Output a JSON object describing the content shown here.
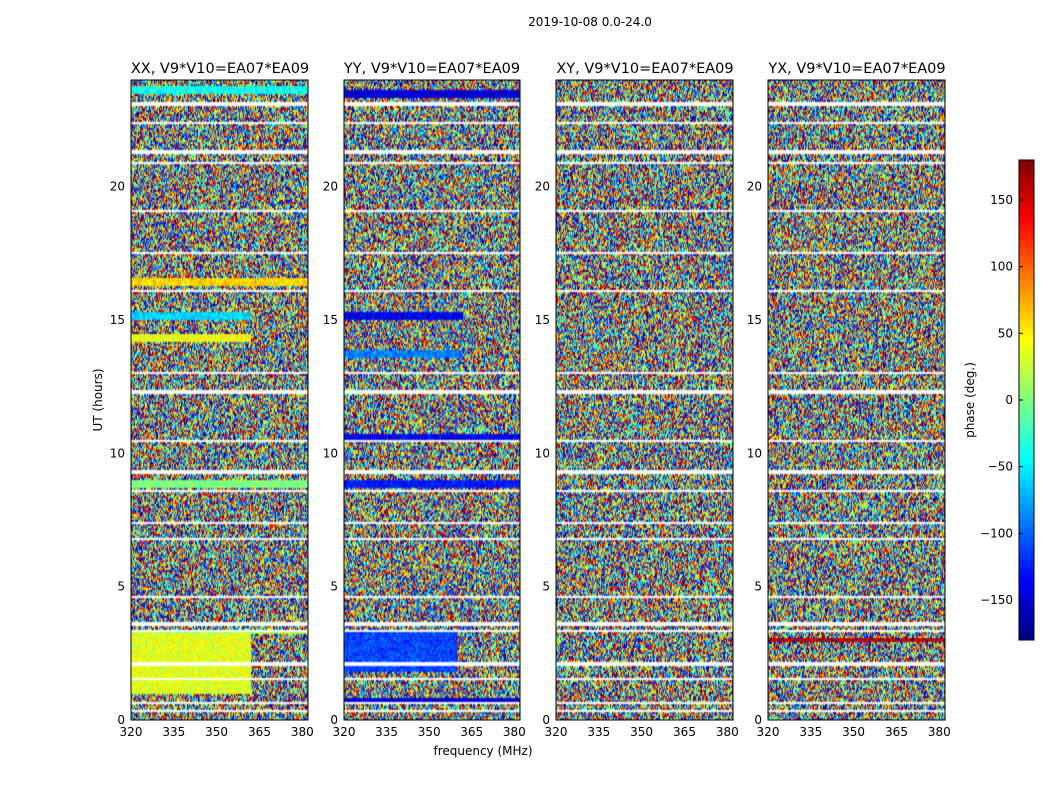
{
  "figure": {
    "suptitle": "2019-10-08 0.0-24.0",
    "xlabel": "frequency (MHz)",
    "ylabel": "UT (hours)",
    "colorbar_label": "phase (deg.)",
    "colorbar_ticks": [
      150,
      100,
      50,
      0,
      -50,
      -100,
      -150
    ],
    "colorbar_tick_labels": [
      "150",
      "100",
      "50",
      "0",
      "−50",
      "−100",
      "−150"
    ],
    "colormap": "jet",
    "colormap_stops": [
      "#00007f",
      "#0000ff",
      "#007fff",
      "#00ffff",
      "#7fff7f",
      "#ffff00",
      "#ff7f00",
      "#ff0000",
      "#7f0000"
    ]
  },
  "chart_data": [
    {
      "type": "heatmap",
      "title": "XX, V9*V10=EA07*EA09",
      "xlabel": "",
      "ylabel": "UT (hours)",
      "xlim": [
        320,
        382
      ],
      "ylim": [
        0,
        24
      ],
      "xticks": [
        320,
        335,
        350,
        365,
        380
      ],
      "xtick_labels": [
        "320",
        "335",
        "350",
        "365",
        "380"
      ],
      "yticks": [
        0,
        5,
        10,
        15,
        20
      ],
      "ytick_labels": [
        "0",
        "5",
        "10",
        "15",
        "20"
      ],
      "value_label": "phase (deg.)",
      "vlim": [
        -180,
        180
      ],
      "blank_hours": [
        0.35,
        0.65,
        1.55,
        2.1,
        3.35,
        3.6,
        4.6,
        6.8,
        7.4,
        8.6,
        9.3,
        10.45,
        12.3,
        13.0,
        16.1,
        17.5,
        19.1,
        20.9,
        21.3,
        22.4,
        23.1
      ],
      "coherent_bands": [
        {
          "t0": 1.0,
          "t1": 3.2,
          "f_end": 362,
          "phase": 35
        },
        {
          "t0": 3.0,
          "t1": 3.3,
          "f_end": 382,
          "phase": 20
        },
        {
          "t0": 8.7,
          "t1": 9.0,
          "f_end": 382,
          "phase": 0
        },
        {
          "t0": 15.0,
          "t1": 15.3,
          "f_end": 362,
          "phase": -60
        },
        {
          "t0": 14.2,
          "t1": 14.5,
          "f_end": 362,
          "phase": 40
        },
        {
          "t0": 16.3,
          "t1": 16.6,
          "f_end": 382,
          "phase": 60
        },
        {
          "t0": 23.5,
          "t1": 23.8,
          "f_end": 382,
          "phase": -40
        }
      ],
      "seed": 11
    },
    {
      "type": "heatmap",
      "title": "YY, V9*V10=EA07*EA09",
      "xlabel": "frequency (MHz)",
      "ylabel": "",
      "xlim": [
        320,
        382
      ],
      "ylim": [
        0,
        24
      ],
      "xticks": [
        320,
        335,
        350,
        365,
        380
      ],
      "xtick_labels": [
        "320",
        "335",
        "350",
        "365",
        "380"
      ],
      "yticks": [
        0,
        5,
        10,
        15,
        20
      ],
      "ytick_labels": [
        "0",
        "5",
        "10",
        "15",
        "20"
      ],
      "value_label": "phase (deg.)",
      "vlim": [
        -180,
        180
      ],
      "blank_hours": [
        0.35,
        0.65,
        1.55,
        2.1,
        3.35,
        3.6,
        4.6,
        6.8,
        7.4,
        8.6,
        9.3,
        10.45,
        12.3,
        13.0,
        16.1,
        17.5,
        19.1,
        20.9,
        21.3,
        22.4,
        23.1
      ],
      "coherent_bands": [
        {
          "t0": 1.8,
          "t1": 3.3,
          "f_end": 360,
          "phase": -110
        },
        {
          "t0": 0.6,
          "t1": 0.8,
          "f_end": 382,
          "phase": -150
        },
        {
          "t0": 8.7,
          "t1": 9.0,
          "f_end": 382,
          "phase": -130
        },
        {
          "t0": 10.4,
          "t1": 10.7,
          "f_end": 382,
          "phase": -140
        },
        {
          "t0": 15.0,
          "t1": 15.3,
          "f_end": 362,
          "phase": -140
        },
        {
          "t0": 13.6,
          "t1": 13.9,
          "f_end": 362,
          "phase": -90
        },
        {
          "t0": 23.3,
          "t1": 23.6,
          "f_end": 382,
          "phase": -150
        }
      ],
      "seed": 23
    },
    {
      "type": "heatmap",
      "title": "XY, V9*V10=EA07*EA09",
      "xlabel": "",
      "ylabel": "",
      "xlim": [
        320,
        382
      ],
      "ylim": [
        0,
        24
      ],
      "xticks": [
        320,
        335,
        350,
        365,
        380
      ],
      "xtick_labels": [
        "320",
        "335",
        "350",
        "365",
        "380"
      ],
      "yticks": [
        0,
        5,
        10,
        15,
        20
      ],
      "ytick_labels": [
        "0",
        "5",
        "10",
        "15",
        "20"
      ],
      "value_label": "phase (deg.)",
      "vlim": [
        -180,
        180
      ],
      "blank_hours": [
        0.35,
        0.65,
        1.55,
        2.1,
        3.35,
        3.6,
        4.6,
        6.8,
        7.4,
        8.6,
        9.3,
        10.45,
        12.3,
        13.0,
        16.1,
        17.5,
        19.1,
        20.9,
        21.3,
        22.4,
        23.1
      ],
      "coherent_bands": [],
      "seed": 37
    },
    {
      "type": "heatmap",
      "title": "YX, V9*V10=EA07*EA09",
      "xlabel": "",
      "ylabel": "",
      "xlim": [
        320,
        382
      ],
      "ylim": [
        0,
        24
      ],
      "xticks": [
        320,
        335,
        350,
        365,
        380
      ],
      "xtick_labels": [
        "320",
        "335",
        "350",
        "365",
        "380"
      ],
      "yticks": [
        0,
        5,
        10,
        15,
        20
      ],
      "ytick_labels": [
        "0",
        "5",
        "10",
        "15",
        "20"
      ],
      "value_label": "phase (deg.)",
      "vlim": [
        -180,
        180
      ],
      "blank_hours": [
        0.35,
        0.65,
        1.55,
        2.1,
        3.35,
        3.6,
        4.6,
        6.8,
        7.4,
        8.6,
        9.3,
        10.45,
        12.3,
        13.0,
        16.1,
        17.5,
        19.1,
        20.9,
        21.3,
        22.4,
        23.1
      ],
      "coherent_bands": [
        {
          "t0": 2.9,
          "t1": 3.1,
          "f_end": 382,
          "phase": 160
        }
      ],
      "seed": 53
    }
  ]
}
